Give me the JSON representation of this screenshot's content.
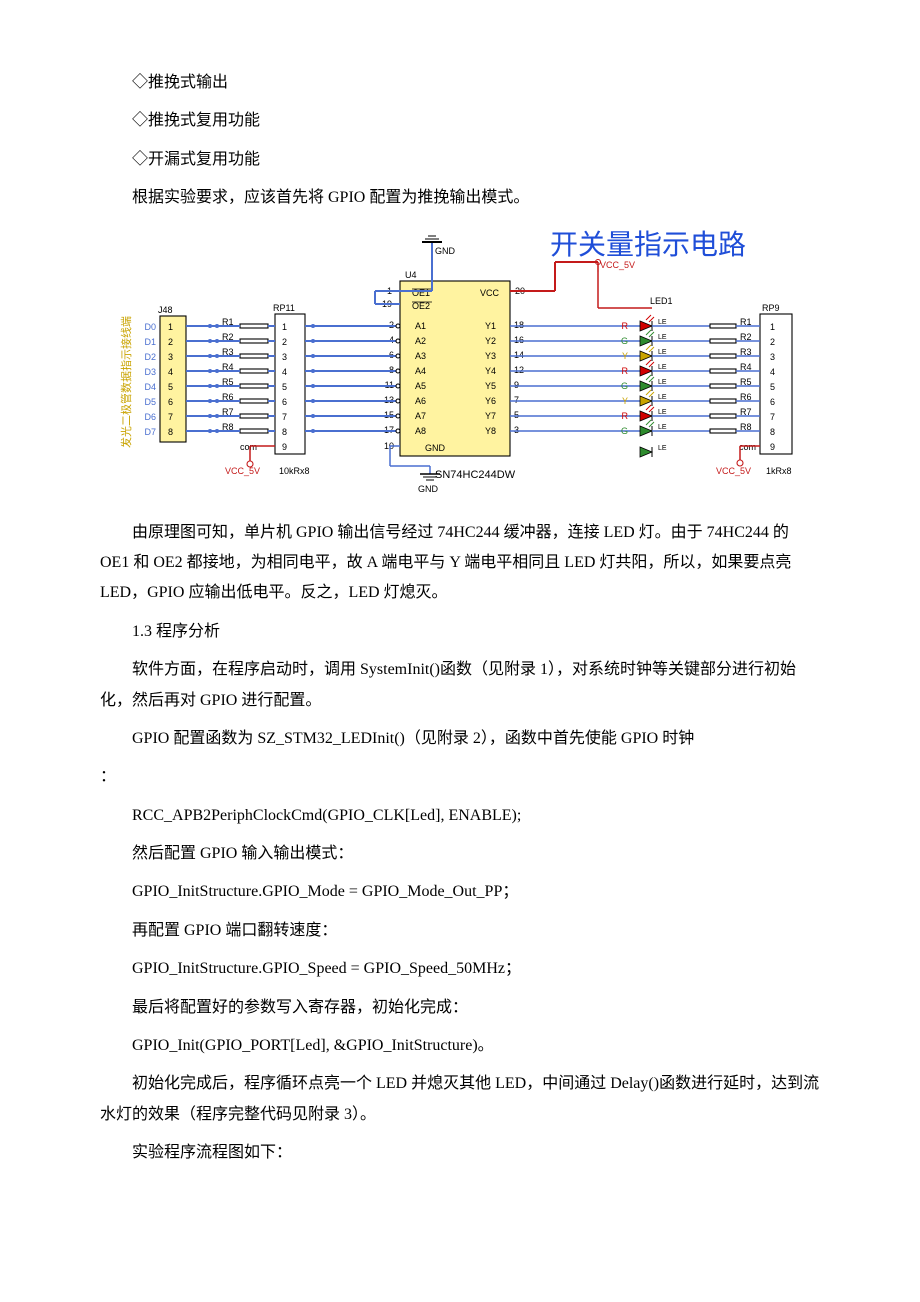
{
  "lines": {
    "l1": "◇推挽式输出",
    "l2": "◇推挽式复用功能",
    "l3": "◇开漏式复用功能",
    "l4": "根据实验要求，应该首先将 GPIO 配置为推挽输出模式。"
  },
  "diagram": {
    "title_cn": "开关量指示电路",
    "gnd": "GND",
    "vcc5v": "VCC_5V",
    "u4": "U4",
    "chip": "SN74HC244DW",
    "vcc": "VCC",
    "j48": "J48",
    "rp11": "RP11",
    "rp9": "RP9",
    "pins_d": [
      "D0",
      "D1",
      "D2",
      "D3",
      "D4",
      "D5",
      "D6",
      "D7"
    ],
    "r_left": [
      "R1",
      "R2",
      "R3",
      "R4",
      "R5",
      "R6",
      "R7",
      "R8"
    ],
    "r_right": [
      "R1",
      "R2",
      "R3",
      "R4",
      "R5",
      "R6",
      "R7",
      "R8"
    ],
    "rp_pins_left": [
      "1",
      "2",
      "3",
      "4",
      "5",
      "6",
      "7",
      "8",
      "9"
    ],
    "rp_pins_right": [
      "1",
      "2",
      "3",
      "4",
      "5",
      "6",
      "7",
      "8",
      "9"
    ],
    "j48_pins": [
      "1",
      "2",
      "3",
      "4",
      "5",
      "6",
      "7",
      "8"
    ],
    "a_pins": [
      "A1",
      "A2",
      "A3",
      "A4",
      "A5",
      "A6",
      "A7",
      "A8"
    ],
    "y_pins": [
      "Y1",
      "Y2",
      "Y3",
      "Y4",
      "Y5",
      "Y6",
      "Y7",
      "Y8"
    ],
    "oe1": "OE1",
    "oe2": "OE2",
    "a_nums": [
      "2",
      "4",
      "6",
      "8",
      "11",
      "13",
      "15",
      "17"
    ],
    "y_nums": [
      "18",
      "16",
      "14",
      "12",
      "9",
      "7",
      "5",
      "3"
    ],
    "oe1_num": "1",
    "oe2_num": "19",
    "vcc_num": "20",
    "gnd_num": "10",
    "led_colors": [
      "R",
      "G",
      "Y",
      "R",
      "G",
      "Y",
      "R",
      "G"
    ],
    "led_hex": [
      "#d00000",
      "#2e8b2e",
      "#c9a300",
      "#d00000",
      "#2e8b2e",
      "#c9a300",
      "#d00000",
      "#2e8b2e"
    ],
    "led1": "LED1",
    "com": "com",
    "tenk": "10kRx8",
    "onek": "1kRx8",
    "side_label": "发光二极管数据指示接线端",
    "colors": {
      "chip_fill": "#fff3a0",
      "blue": "#4a6fd0",
      "red": "#c41a1a",
      "black": "#000000",
      "title": "#1f4ed8"
    },
    "stroke_w": 1.1,
    "font_small": 9,
    "font_med": 11,
    "font_title": 28
  },
  "after_diagram": {
    "p1": "由原理图可知，单片机 GPIO 输出信号经过 74HC244 缓冲器，连接 LED 灯。由于 74HC244 的 OE1 和 OE2 都接地，为相同电平，故 A 端电平与 Y 端电平相同且 LED 灯共阳，所以，如果要点亮 LED，GPIO 应输出低电平。反之，LED 灯熄灭。",
    "h1": "1.3 程序分析",
    "p2": "软件方面，在程序启动时，调用 SystemInit()函数（见附录 1），对系统时钟等关键部分进行初始化，然后再对 GPIO 进行配置。",
    "p3a": "GPIO 配置函数为 SZ_STM32_LEDInit()（见附录 2），函数中首先使能 GPIO 时钟",
    "p3b": "：",
    "c1": "RCC_APB2PeriphClockCmd(GPIO_CLK[Led], ENABLE);",
    "p4": "然后配置 GPIO 输入输出模式：",
    "c2": "GPIO_InitStructure.GPIO_Mode = GPIO_Mode_Out_PP；",
    "p5": "再配置 GPIO 端口翻转速度：",
    "c3": "GPIO_InitStructure.GPIO_Speed = GPIO_Speed_50MHz；",
    "p6": "最后将配置好的参数写入寄存器，初始化完成：",
    "c4": "GPIO_Init(GPIO_PORT[Led], &GPIO_InitStructure)。",
    "p7": "初始化完成后，程序循环点亮一个 LED 并熄灭其他 LED，中间通过 Delay()函数进行延时，达到流水灯的效果（程序完整代码见附录 3）。",
    "p8": "实验程序流程图如下："
  }
}
